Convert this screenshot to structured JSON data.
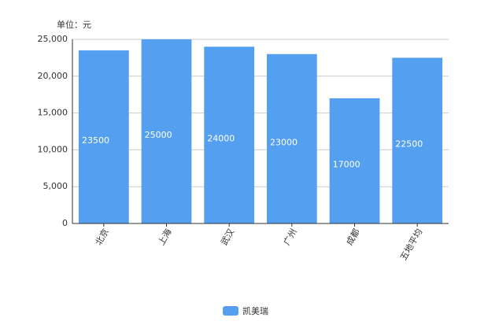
{
  "chart_data": {
    "type": "bar",
    "y_axis_label": "单位：元",
    "categories": [
      "北京",
      "上海",
      "武汉",
      "广州",
      "成都",
      "五地平均"
    ],
    "series": [
      {
        "name": "凯美瑞",
        "color": "#559ff0",
        "values": [
          23500,
          25000,
          24000,
          23000,
          17000,
          22500
        ]
      }
    ],
    "ylim": [
      0,
      25000
    ],
    "yticks": [
      0,
      {
        "value": 5000,
        "label": "5,000"
      },
      {
        "value": 10000,
        "label": "10,000"
      },
      {
        "value": 15000,
        "label": "15,000"
      },
      {
        "value": 20000,
        "label": "20,000"
      },
      {
        "value": 25000,
        "label": "25,000"
      }
    ],
    "grid": true,
    "legend": "bottom"
  }
}
